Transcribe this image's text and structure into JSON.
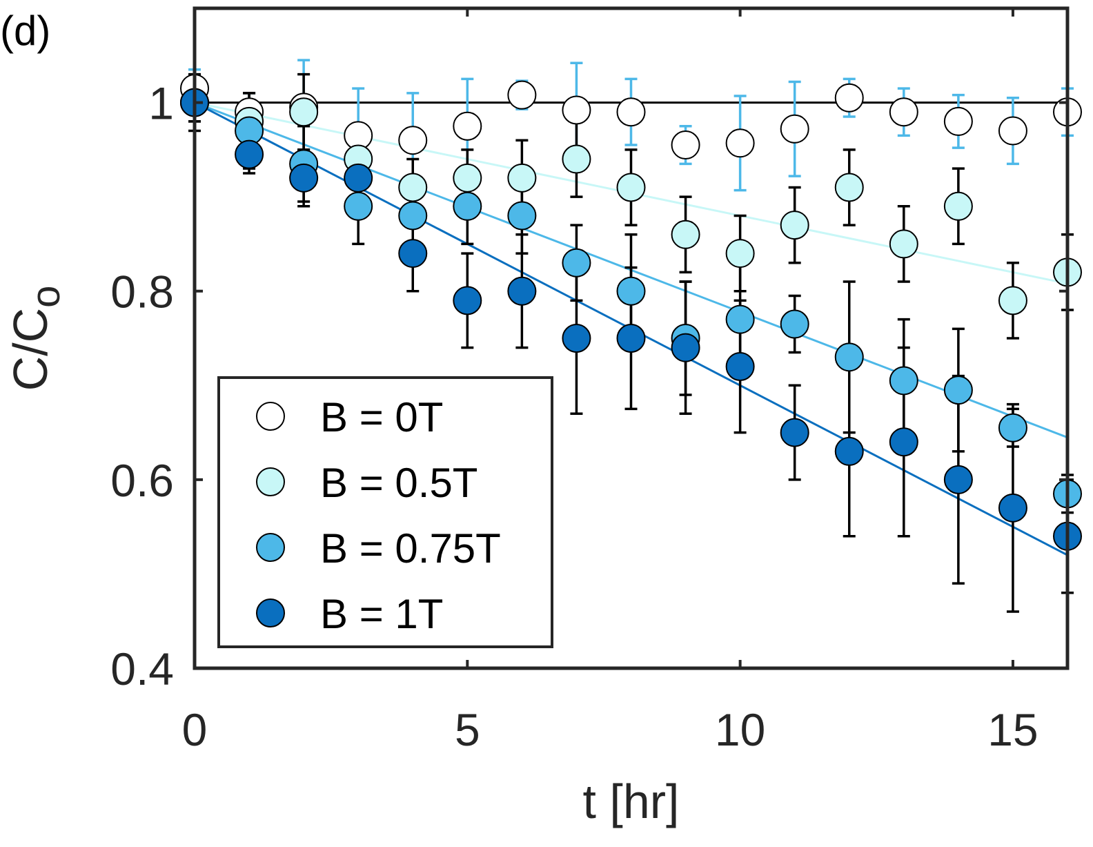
{
  "panel_label": "(d)",
  "chart_data": {
    "type": "scatter",
    "title": "",
    "xlabel": "t [hr]",
    "ylabel_main": "C/C",
    "ylabel_sub": "o",
    "xlim": [
      0,
      16
    ],
    "ylim": [
      0.4,
      1.1
    ],
    "xticks": [
      0,
      5,
      10,
      15
    ],
    "xtick_labels": [
      "0",
      "5",
      "10",
      "15"
    ],
    "yticks": [
      0.4,
      0.6,
      0.8,
      1.0
    ],
    "ytick_labels": [
      "0.4",
      "0.6",
      "0.8",
      "1"
    ],
    "grid": false,
    "legend_position": "bottom-left",
    "reference_line": {
      "y": 1.0,
      "color": "#000000"
    },
    "series": [
      {
        "name": "B = 0T",
        "label": "B = 0T",
        "color": "#ffffff",
        "errorbar_color": "#4db8e8",
        "fit_slope": 0,
        "fit_color": "#000000",
        "x": [
          0,
          1,
          2,
          3,
          4,
          5,
          6,
          7,
          8,
          9,
          10,
          11,
          12,
          13,
          14,
          15,
          16
        ],
        "y": [
          1.015,
          0.99,
          0.995,
          0.965,
          0.96,
          0.975,
          1.008,
          0.992,
          0.99,
          0.955,
          0.957,
          0.972,
          1.005,
          0.99,
          0.98,
          0.97,
          0.99
        ],
        "err": [
          0.02,
          0.02,
          0.05,
          0.05,
          0.05,
          0.05,
          0.015,
          0.05,
          0.035,
          0.02,
          0.05,
          0.05,
          0.02,
          0.025,
          0.028,
          0.035,
          0.025
        ]
      },
      {
        "name": "B = 0.5T",
        "label": "B = 0.5T",
        "color": "#c8f7f7",
        "errorbar_color": "#000000",
        "fit_slope": -0.012,
        "fit_color": "#c8f7f7",
        "x": [
          0,
          1,
          2,
          3,
          4,
          5,
          6,
          7,
          8,
          9,
          10,
          11,
          12,
          13,
          14,
          15,
          16
        ],
        "y": [
          1.0,
          0.98,
          0.99,
          0.94,
          0.91,
          0.92,
          0.92,
          0.94,
          0.91,
          0.86,
          0.84,
          0.87,
          0.91,
          0.85,
          0.89,
          0.79,
          0.82
        ],
        "err": [
          0.02,
          0.03,
          0.04,
          0.03,
          0.03,
          0.03,
          0.04,
          0.04,
          0.04,
          0.04,
          0.04,
          0.04,
          0.04,
          0.04,
          0.04,
          0.04,
          0.04
        ]
      },
      {
        "name": "B = 0.75T",
        "label": "B = 0.75T",
        "color": "#4db8e8",
        "errorbar_color": "#000000",
        "fit_slope": -0.0222,
        "fit_color": "#4db8e8",
        "x": [
          0,
          1,
          2,
          3,
          4,
          5,
          6,
          7,
          8,
          9,
          10,
          11,
          12,
          13,
          14,
          15,
          16
        ],
        "y": [
          1.0,
          0.97,
          0.935,
          0.89,
          0.88,
          0.89,
          0.88,
          0.83,
          0.8,
          0.75,
          0.77,
          0.765,
          0.73,
          0.705,
          0.695,
          0.655,
          0.585
        ],
        "err": [
          0.02,
          0.04,
          0.04,
          0.04,
          0.04,
          0.04,
          0.04,
          0.04,
          0.06,
          0.06,
          0.06,
          0.03,
          0.08,
          0.065,
          0.065,
          0.02,
          0.02
        ]
      },
      {
        "name": "B = 1T",
        "label": "B = 1T",
        "color": "#0a6fbf",
        "errorbar_color": "#000000",
        "fit_slope": -0.03,
        "fit_color": "#0a6fbf",
        "x": [
          0,
          1,
          2,
          3,
          4,
          5,
          6,
          7,
          8,
          9,
          10,
          11,
          12,
          13,
          14,
          15,
          16
        ],
        "y": [
          1.0,
          0.945,
          0.92,
          0.92,
          0.84,
          0.79,
          0.8,
          0.75,
          0.75,
          0.74,
          0.72,
          0.65,
          0.63,
          0.64,
          0.6,
          0.57,
          0.54
        ],
        "err": [
          0.03,
          0.02,
          0.03,
          0.03,
          0.04,
          0.05,
          0.06,
          0.08,
          0.075,
          0.07,
          0.07,
          0.05,
          0.09,
          0.1,
          0.11,
          0.11,
          0.06
        ]
      }
    ]
  }
}
